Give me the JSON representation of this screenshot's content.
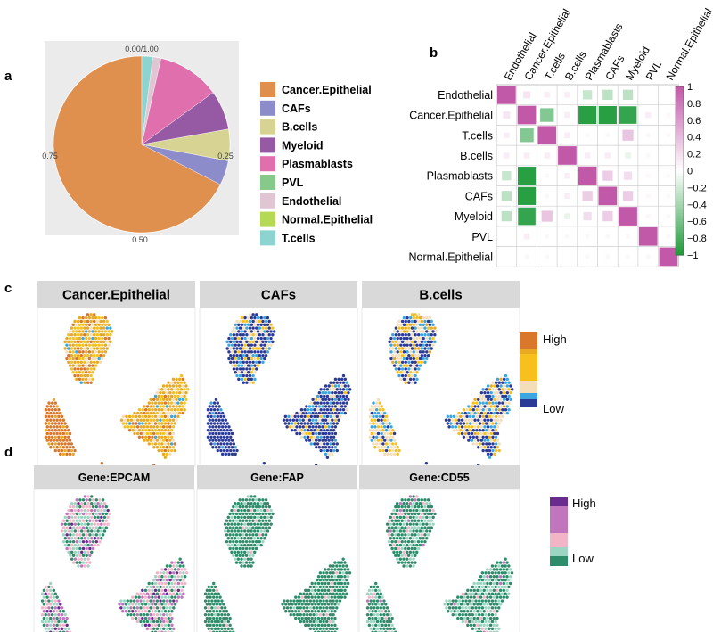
{
  "panels": {
    "a": "a",
    "b": "b",
    "c": "c",
    "d": "d"
  },
  "chart_data": [
    {
      "type": "pie",
      "panel": "a",
      "slices": [
        {
          "label": "Cancer.Epithelial",
          "value": 0.675,
          "color": "#DF8F4E"
        },
        {
          "label": "CAFs",
          "value": 0.045,
          "color": "#8B8CC9"
        },
        {
          "label": "B.cells",
          "value": 0.058,
          "color": "#D7D493"
        },
        {
          "label": "Myeloid",
          "value": 0.072,
          "color": "#9659A3"
        },
        {
          "label": "Plasmablasts",
          "value": 0.115,
          "color": "#E06FAD"
        },
        {
          "label": "PVL",
          "value": 0.0,
          "color": "#86C98B"
        },
        {
          "label": "Endothelial",
          "value": 0.015,
          "color": "#E0C6D3"
        },
        {
          "label": "Normal.Epithelial",
          "value": 0.0,
          "color": "#B5D855"
        },
        {
          "label": "T.cells",
          "value": 0.02,
          "color": "#8DD3CF"
        }
      ],
      "ticks": [
        "0.00/1.00",
        "0.25",
        "0.50",
        "0.75"
      ]
    },
    {
      "type": "heatmap",
      "panel": "b",
      "rows": [
        "Endothelial",
        "Cancer.Epithelial",
        "T.cells",
        "B.cells",
        "Plasmablasts",
        "CAFs",
        "Myeloid",
        "PVL",
        "Normal.Epithelial"
      ],
      "cols": [
        "Endothelial",
        "Cancer.Epithelial",
        "T.cells",
        "B.cells",
        "Plasmablasts",
        "CAFs",
        "Myeloid",
        "PVL",
        "Normal.Epithelial"
      ],
      "values": [
        [
          1,
          0.15,
          0.1,
          0.1,
          -0.25,
          -0.3,
          -0.3,
          0,
          0
        ],
        [
          0.15,
          1,
          -0.55,
          0.1,
          -0.95,
          -0.95,
          -0.9,
          0.1,
          0.05
        ],
        [
          0.1,
          -0.55,
          1,
          0.1,
          0.05,
          0.05,
          0.35,
          0.05,
          0.05
        ],
        [
          0.1,
          0.1,
          0.1,
          1,
          0.1,
          0.1,
          -0.1,
          0.05,
          0
        ],
        [
          -0.25,
          -0.95,
          0.05,
          0.1,
          1,
          0.3,
          0.2,
          0.05,
          0.05
        ],
        [
          -0.3,
          -0.95,
          0.05,
          0.1,
          0.3,
          1,
          0.3,
          0.05,
          0.05
        ],
        [
          -0.3,
          -0.9,
          0.35,
          -0.1,
          0.2,
          0.3,
          1,
          0.05,
          0.05
        ],
        [
          0,
          0.1,
          0.05,
          0.05,
          0.05,
          0.05,
          0.05,
          1,
          0.05
        ],
        [
          0,
          0.05,
          0.05,
          0,
          0.05,
          0.05,
          0.05,
          0.05,
          1
        ]
      ],
      "colorbar_ticks": [
        "1",
        "0.8",
        "0.6",
        "0.4",
        "0.2",
        "0",
        "−0.2",
        "−0.4",
        "−0.6",
        "−0.8",
        "−1"
      ],
      "colors": {
        "pos": "#C158A8",
        "neg": "#1E9A3A"
      }
    },
    {
      "type": "scatter",
      "panel": "c",
      "facets": [
        "Cancer.Epithelial",
        "CAFs",
        "B.cells"
      ],
      "legend": {
        "high": "High",
        "low": "Low"
      },
      "palette": [
        "#2B3A97",
        "#3BA6E0",
        "#F3DEB9",
        "#F8C01C",
        "#E9AA21",
        "#D9772A"
      ]
    },
    {
      "type": "scatter",
      "panel": "d",
      "facets": [
        "Gene:EPCAM",
        "Gene:FAP",
        "Gene:CD55"
      ],
      "legend": {
        "high": "High",
        "low": "Low"
      },
      "palette": [
        "#2E8C6A",
        "#9DD5C3",
        "#F2B5C8",
        "#C075BC",
        "#6A2B8E"
      ]
    }
  ]
}
